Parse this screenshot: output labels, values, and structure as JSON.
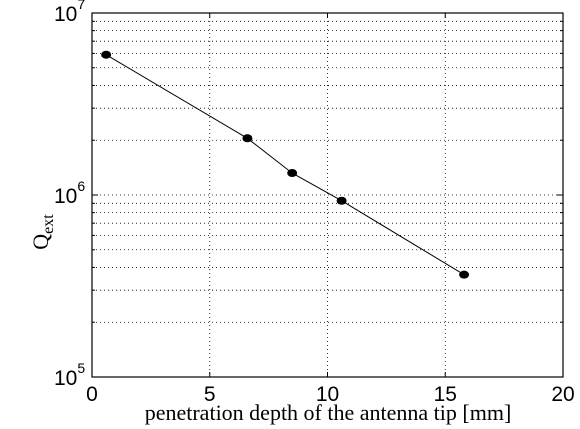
{
  "chart_data": {
    "type": "scatter",
    "xlabel": "penetration depth of the antenna tip [mm]",
    "ylabel": {
      "main": "Q",
      "sub": "ext"
    },
    "xlim": [
      0,
      20
    ],
    "ylim": [
      100000,
      10000000
    ],
    "yscale": "log",
    "grid": true,
    "x_ticks": [
      "0",
      "5",
      "10",
      "15",
      "20"
    ],
    "y_ticks": [
      {
        "base": "10",
        "exp": "5",
        "value": 100000
      },
      {
        "base": "10",
        "exp": "6",
        "value": 1000000
      },
      {
        "base": "10",
        "exp": "7",
        "value": 10000000
      }
    ],
    "series": [
      {
        "x": [
          0.6,
          6.6,
          8.5,
          10.6,
          15.8
        ],
        "y": [
          5900000,
          2050000,
          1320000,
          930000,
          365000
        ],
        "marker": "filled-circle",
        "line": "solid",
        "color": "#000000"
      }
    ]
  }
}
